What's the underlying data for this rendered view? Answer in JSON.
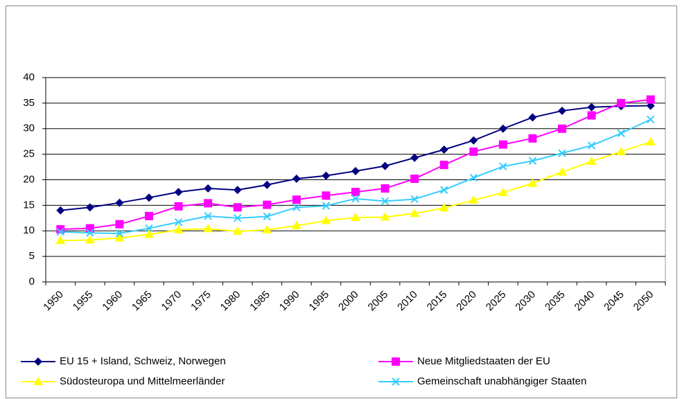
{
  "chart_data": {
    "type": "line",
    "categories": [
      "1950",
      "1955",
      "1960",
      "1965",
      "1970",
      "1975",
      "1980",
      "1985",
      "1990",
      "1995",
      "2000",
      "2005",
      "2010",
      "2015",
      "2020",
      "2025",
      "2030",
      "2035",
      "2040",
      "2045",
      "2050"
    ],
    "series": [
      {
        "name": "EU 15 + Island, Schweiz, Norwegen",
        "color": "#000080",
        "marker": "diamond",
        "values": [
          14,
          14.6,
          15.5,
          16.5,
          17.6,
          18.3,
          18,
          19,
          20.2,
          20.8,
          21.7,
          22.7,
          24.3,
          25.9,
          27.7,
          30,
          32.2,
          33.5,
          34.2,
          34.4,
          34.5
        ]
      },
      {
        "name": "Neue Mitgliedstaaten der EU",
        "color": "#ff00ff",
        "marker": "square",
        "values": [
          10.3,
          10.5,
          11.3,
          12.9,
          14.8,
          15.4,
          14.6,
          15.1,
          16.1,
          16.9,
          17.6,
          18.3,
          20.2,
          22.9,
          25.5,
          26.9,
          28.1,
          30,
          32.6,
          35,
          35.7
        ]
      },
      {
        "name": "Südosteuropa und Mittelmeerländer",
        "color": "#ffff00",
        "marker": "triangle",
        "values": [
          8.1,
          8.2,
          8.6,
          9.3,
          10.2,
          10.4,
          9.9,
          10.2,
          11,
          12,
          12.6,
          12.7,
          13.4,
          14.5,
          16,
          17.5,
          19.3,
          21.5,
          23.6,
          25.5,
          27.4
        ]
      },
      {
        "name": "Gemeinschaft unabhängiger Staaten",
        "color": "#33ccff",
        "marker": "x",
        "values": [
          9.8,
          9.6,
          9.5,
          10.5,
          11.7,
          12.9,
          12.5,
          12.8,
          14.6,
          14.9,
          16.3,
          15.8,
          16.2,
          18,
          20.4,
          22.6,
          23.7,
          25.2,
          26.7,
          29.1,
          31.8
        ]
      }
    ],
    "ylim": [
      0,
      40
    ],
    "yticks": [
      0,
      5,
      10,
      15,
      20,
      25,
      30,
      35,
      40
    ],
    "grid": true,
    "legend": "bottom"
  }
}
